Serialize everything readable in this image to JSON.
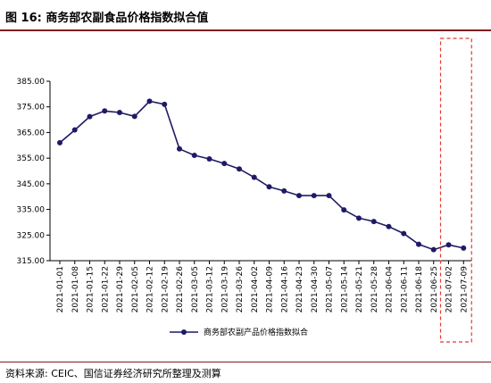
{
  "header": {
    "title": "图 16:  商务部农副食品价格指数拟合值"
  },
  "footer": {
    "source": "资料来源: CEIC、国信证券经济研究所整理及测算"
  },
  "colors": {
    "line": "#1f1a66",
    "highlight_box": "#e53935",
    "rule": "#7f1d1d"
  },
  "chart_data": {
    "type": "line",
    "ylim": [
      315,
      385
    ],
    "yticks": [
      "385.00",
      "375.00",
      "365.00",
      "355.00",
      "345.00",
      "335.00",
      "325.00",
      "315.00"
    ],
    "ytick_values": [
      385,
      375,
      365,
      355,
      345,
      335,
      325,
      315
    ],
    "categories": [
      "2021-01-01",
      "2021-01-08",
      "2021-01-15",
      "2021-01-22",
      "2021-01-29",
      "2021-02-05",
      "2021-02-12",
      "2021-02-19",
      "2021-02-26",
      "2021-03-05",
      "2021-03-12",
      "2021-03-19",
      "2021-03-26",
      "2021-04-02",
      "2021-04-09",
      "2021-04-16",
      "2021-04-23",
      "2021-04-30",
      "2021-05-07",
      "2021-05-14",
      "2021-05-21",
      "2021-05-28",
      "2021-06-04",
      "2021-06-11",
      "2021-06-18",
      "2021-06-25",
      "2021-07-02",
      "2021-07-09"
    ],
    "tick_labels": [
      "2021-01-01",
      "2021-01-08",
      "2021-01-15",
      "2021-01-22",
      "2021-01-29",
      "2021-02-05",
      "2021-02-12",
      "2021-02-19",
      "2021-02-26",
      "2021-03-05",
      "2021-03-12",
      "2021-03-19",
      "2021-03-26",
      "2021-04-02",
      "2021-04-09",
      "2021-04-16",
      "2021-04-23",
      "2021-04-30",
      "2021-05-07",
      "2021-05-14",
      "2021-05-21",
      "2021-05-28",
      "2021-06-04",
      "2021-06-11",
      "2021-06-18",
      "2021-06-25",
      "2021-07-02",
      "2021-07-09"
    ],
    "series": [
      {
        "name": "商务部农副产品价格指数拟合",
        "values": [
          361.0,
          366.0,
          371.2,
          373.4,
          372.8,
          371.3,
          377.2,
          376.0,
          358.6,
          356.1,
          354.7,
          352.9,
          350.8,
          347.5,
          343.8,
          342.2,
          340.4,
          340.4,
          340.4,
          334.8,
          331.6,
          330.3,
          328.3,
          325.6,
          321.4,
          319.3,
          321.2,
          319.9
        ]
      }
    ],
    "highlight": {
      "from": "2021-07-02",
      "to": "2021-07-09",
      "style": "dashed red box"
    },
    "grid": false,
    "legend_position": "bottom-center"
  }
}
